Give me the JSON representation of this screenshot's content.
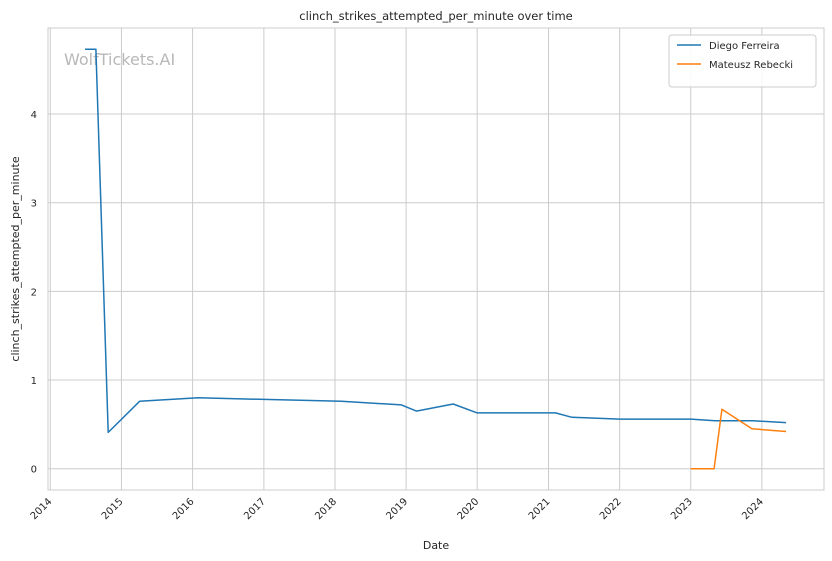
{
  "chart_data": {
    "type": "line",
    "title": "clinch_strikes_attempted_per_minute over time",
    "xlabel": "Date",
    "ylabel": "clinch_strikes_attempted_per_minute",
    "watermark": "WolfTickets.AI",
    "x_ticks": [
      "2014",
      "2015",
      "2016",
      "2017",
      "2018",
      "2019",
      "2020",
      "2021",
      "2022",
      "2023",
      "2024"
    ],
    "y_ticks": [
      0,
      1,
      2,
      3,
      4
    ],
    "xlim": [
      "2013-12-20",
      "2024-11-15"
    ],
    "ylim": [
      -0.24,
      4.97
    ],
    "grid": true,
    "legend_position": "top-right",
    "series": [
      {
        "name": "Diego Ferreira",
        "color": "#1f77b4",
        "points": [
          [
            "2014-06-28",
            4.73
          ],
          [
            "2014-08-23",
            4.73
          ],
          [
            "2014-10-25",
            0.41
          ],
          [
            "2015-04-04",
            0.76
          ],
          [
            "2016-01-30",
            0.8
          ],
          [
            "2018-02-03",
            0.76
          ],
          [
            "2018-12-08",
            0.72
          ],
          [
            "2019-02-23",
            0.65
          ],
          [
            "2019-08-31",
            0.73
          ],
          [
            "2020-01-01",
            0.63
          ],
          [
            "2021-02-06",
            0.63
          ],
          [
            "2021-05-01",
            0.58
          ],
          [
            "2022-01-01",
            0.56
          ],
          [
            "2023-01-01",
            0.56
          ],
          [
            "2023-05-06",
            0.54
          ],
          [
            "2023-11-18",
            0.54
          ],
          [
            "2024-05-04",
            0.52
          ]
        ]
      },
      {
        "name": "Mateusz Rebecki",
        "color": "#ff7f0e",
        "points": [
          [
            "2023-01-01",
            0.0
          ],
          [
            "2023-05-01",
            0.0
          ],
          [
            "2023-06-10",
            0.67
          ],
          [
            "2023-11-11",
            0.45
          ],
          [
            "2024-05-04",
            0.42
          ]
        ]
      }
    ]
  }
}
